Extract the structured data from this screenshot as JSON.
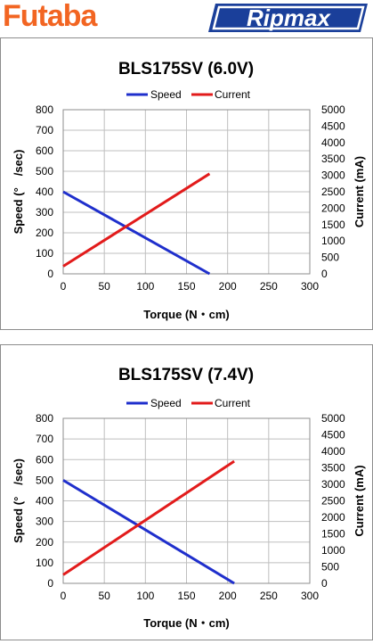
{
  "brands": {
    "left_logo": "Futaba",
    "right_logo": "Ripmax"
  },
  "colors": {
    "futaba_orange": "#f26522",
    "ripmax_blue": "#1a3f9a",
    "speed_line": "#1f2fcc",
    "current_line": "#e21b1b",
    "grid": "#bfbfbf"
  },
  "chart_data": [
    {
      "type": "line",
      "title": "BLS175SV (6.0V)",
      "xlabel": "Torque (N・cm)",
      "ylabel": "Speed (°　/sec)",
      "y2label": "Current (mA)",
      "xlim": [
        0,
        300
      ],
      "xticks": [
        0,
        50,
        100,
        150,
        200,
        250,
        300
      ],
      "ylim": [
        0,
        800
      ],
      "yticks": [
        0,
        100,
        200,
        300,
        400,
        500,
        600,
        700,
        800
      ],
      "y2lim": [
        0,
        5000
      ],
      "y2ticks": [
        0,
        500,
        1000,
        1500,
        2000,
        2500,
        3000,
        3500,
        4000,
        4500,
        5000
      ],
      "grid": true,
      "legend_position": "top",
      "series": [
        {
          "name": "Speed",
          "axis": "left",
          "color": "#1f2fcc",
          "x": [
            0,
            178
          ],
          "y": [
            400,
            0
          ]
        },
        {
          "name": "Current",
          "axis": "right",
          "color": "#e21b1b",
          "x": [
            0,
            178
          ],
          "y": [
            230,
            3050
          ]
        }
      ]
    },
    {
      "type": "line",
      "title": "BLS175SV (7.4V)",
      "xlabel": "Torque (N・cm)",
      "ylabel": "Speed (°　/sec)",
      "y2label": "Current (mA)",
      "xlim": [
        0,
        300
      ],
      "xticks": [
        0,
        50,
        100,
        150,
        200,
        250,
        300
      ],
      "ylim": [
        0,
        800
      ],
      "yticks": [
        0,
        100,
        200,
        300,
        400,
        500,
        600,
        700,
        800
      ],
      "y2lim": [
        0,
        5000
      ],
      "y2ticks": [
        0,
        500,
        1000,
        1500,
        2000,
        2500,
        3000,
        3500,
        4000,
        4500,
        5000
      ],
      "grid": true,
      "legend_position": "top",
      "series": [
        {
          "name": "Speed",
          "axis": "left",
          "color": "#1f2fcc",
          "x": [
            0,
            208
          ],
          "y": [
            500,
            0
          ]
        },
        {
          "name": "Current",
          "axis": "right",
          "color": "#e21b1b",
          "x": [
            0,
            208
          ],
          "y": [
            260,
            3700
          ]
        }
      ]
    }
  ]
}
